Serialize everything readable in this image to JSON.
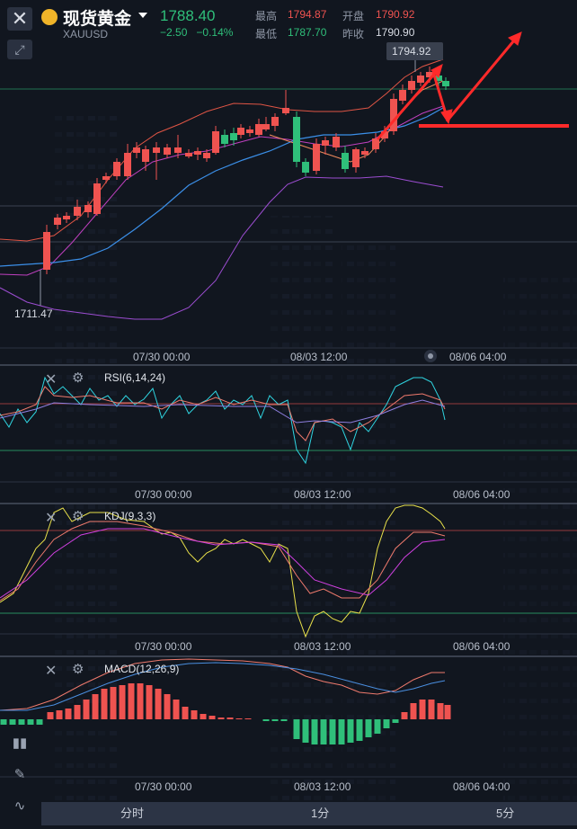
{
  "header": {
    "title": "现货黄金",
    "code": "XAUUSD",
    "price": "1788.40",
    "change": "−2.50",
    "change_pct": "−0.14%",
    "high_label": "最高",
    "high": "1794.87",
    "open_label": "开盘",
    "open": "1790.92",
    "low_label": "最低",
    "low": "1787.70",
    "prev_close_label": "昨收",
    "prev_close": "1790.90"
  },
  "main_chart": {
    "max_label": "1794.92",
    "min_label": "1711.47",
    "x_ticks": [
      "07/30 00:00",
      "08/03 12:00",
      "08/06 04:00"
    ]
  },
  "rsi": {
    "title": "RSI(6,14,24)",
    "x_ticks": [
      "07/30 00:00",
      "08/03 12:00",
      "08/06 04:00"
    ]
  },
  "kdj": {
    "title": "KDJ(9,3,3)",
    "x_ticks": [
      "07/30 00:00",
      "08/03 12:00",
      "08/06 04:00"
    ]
  },
  "macd": {
    "title": "MACD(12,26,9)",
    "x_ticks": [
      "07/30 00:00",
      "08/03 12:00",
      "08/06 04:00"
    ]
  },
  "timeframes": [
    "分时",
    "1分",
    "5分"
  ],
  "colors": {
    "up": "#ef5350",
    "down": "#2fbf7a",
    "background": "#11161f",
    "annotation": "#ff2a2a"
  },
  "icons": [
    "close-icon",
    "expand-icon",
    "candlestick-icon",
    "pencil-icon",
    "indicator-icon",
    "gear-icon",
    "remove-icon",
    "scroll-dot-icon"
  ]
}
